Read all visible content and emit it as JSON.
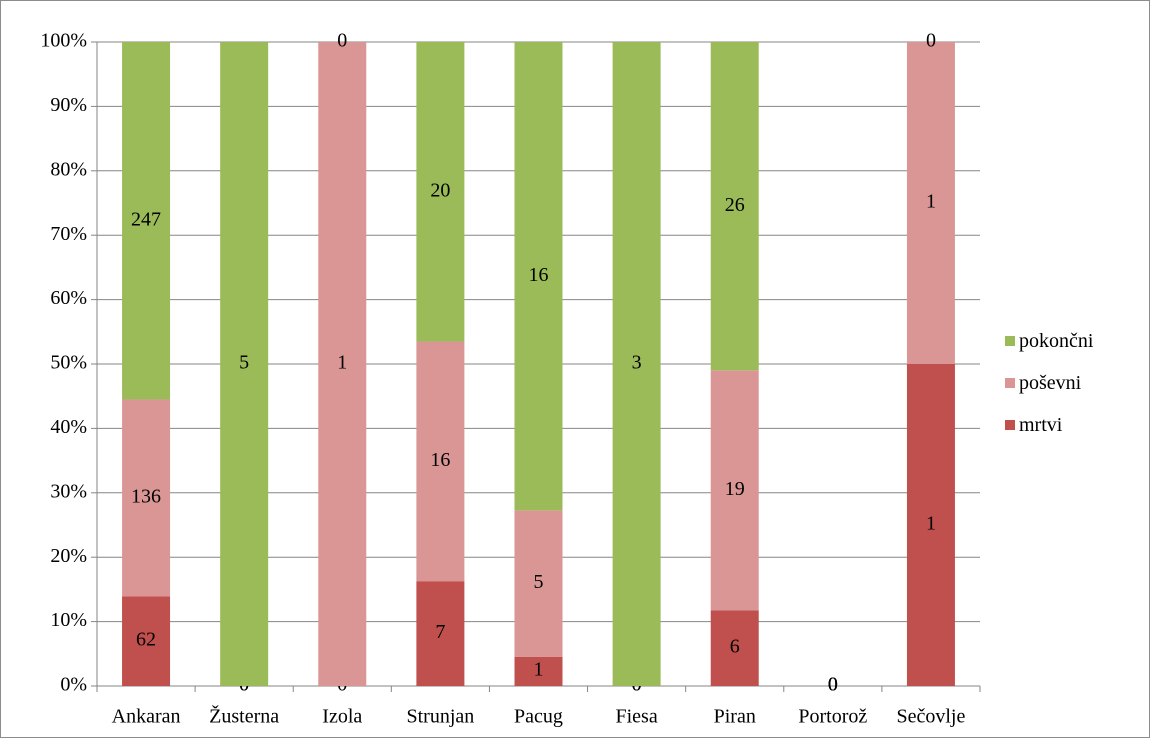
{
  "chart_data": {
    "type": "bar",
    "stacked": "percent",
    "categories": [
      "Ankaran",
      "Žusterna",
      "Izola",
      "Strunjan",
      "Pacug",
      "Fiesa",
      "Piran",
      "Portorož",
      "Sečovlje"
    ],
    "series": [
      {
        "name": "mrtvi",
        "color": "#c0504d",
        "values": [
          62,
          0,
          0,
          7,
          1,
          0,
          6,
          0,
          1
        ]
      },
      {
        "name": "poševni",
        "color": "#d99694",
        "values": [
          136,
          0,
          1,
          16,
          5,
          0,
          19,
          0,
          1
        ]
      },
      {
        "name": "pokončni",
        "color": "#9bbb59",
        "values": [
          247,
          5,
          0,
          20,
          16,
          3,
          26,
          0,
          0
        ]
      }
    ],
    "yticks": [
      "0%",
      "10%",
      "20%",
      "30%",
      "40%",
      "50%",
      "60%",
      "70%",
      "80%",
      "90%",
      "100%"
    ],
    "ylim": [
      0,
      100
    ],
    "grid": true,
    "legend": "right",
    "legend_order": [
      "pokončni",
      "poševni",
      "mrtvi"
    ],
    "xlabel": "",
    "ylabel": "",
    "title": ""
  }
}
